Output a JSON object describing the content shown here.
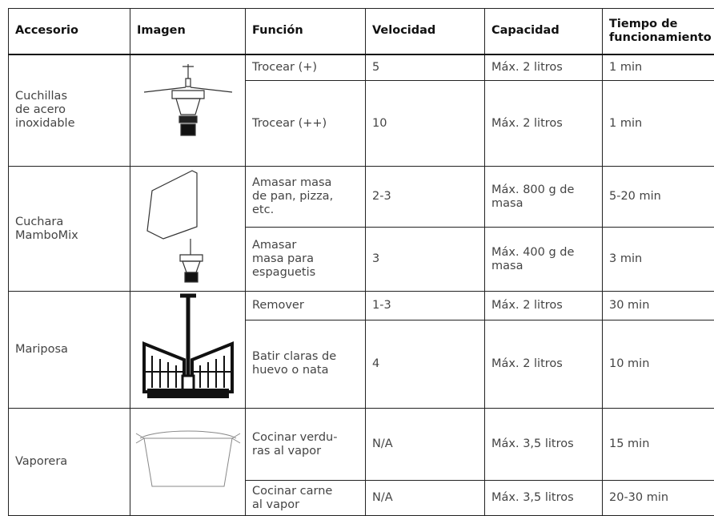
{
  "table": {
    "headers": [
      "Accesorio",
      "Imagen",
      "Función",
      "Velocidad",
      "Capacidad",
      "Tiempo de\nfuncionamiento"
    ],
    "groups": [
      {
        "accessory": "Cuchillas\nde acero\ninoxidable",
        "rows": [
          [
            "Trocear (+)",
            "5",
            "Máx. 2 litros",
            "1 min"
          ],
          [
            "Trocear (++)",
            "10",
            "Máx. 2 litros",
            "1 min"
          ]
        ]
      },
      {
        "accessory": "Cuchara\nMamboMix",
        "rows": [
          [
            "Amasar masa\nde pan, pizza,\netc.",
            "2-3",
            "Máx. 800 g de\nmasa",
            "5-20 min"
          ],
          [
            "Amasar\nmasa para\nespaguetis",
            "3",
            "Máx. 400 g de\nmasa",
            "3 min"
          ]
        ]
      },
      {
        "accessory": "Mariposa",
        "rows": [
          [
            "Remover",
            "1-3",
            "Máx. 2 litros",
            "30 min"
          ],
          [
            "Batir claras de\nhuevo o nata",
            "4",
            "Máx. 2 litros",
            "10 min"
          ]
        ]
      },
      {
        "accessory": "Vaporera",
        "rows": [
          [
            "Cocinar verdu-\nras al vapor",
            "N/A",
            "Máx. 3,5 litros",
            "15 min"
          ],
          [
            "Cocinar carne\nal vapor",
            "N/A",
            "Máx. 3,5 litros",
            "20-30 min"
          ]
        ]
      }
    ]
  }
}
